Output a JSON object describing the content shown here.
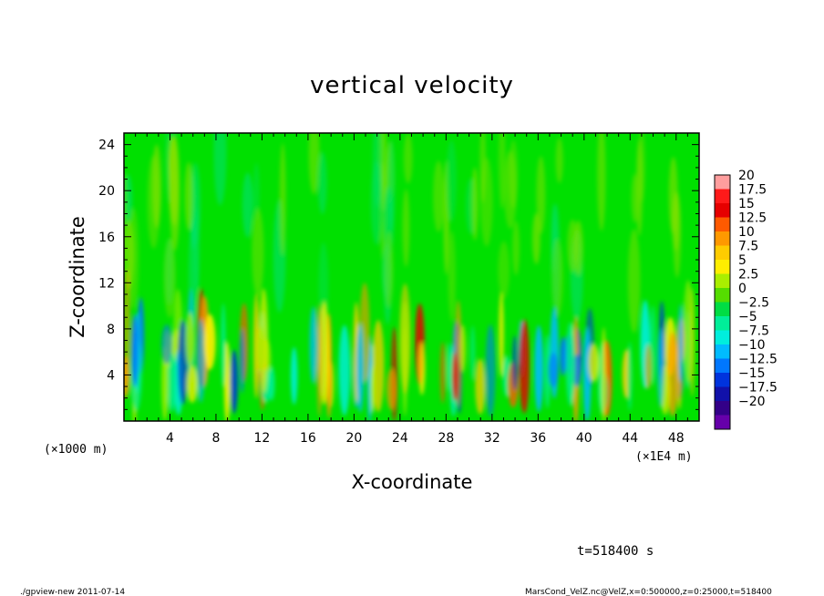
{
  "chart_data": {
    "type": "heatmap",
    "title": "vertical velocity",
    "xlabel": "X-coordinate",
    "ylabel": "Z-coordinate",
    "x_unit_left": "(×1000 m)",
    "x_unit_right": "(×1E4 m)",
    "xlim": [
      0,
      50
    ],
    "ylim": [
      0,
      25
    ],
    "x_ticks": [
      "4",
      "8",
      "12",
      "16",
      "20",
      "24",
      "28",
      "32",
      "36",
      "40",
      "44",
      "48"
    ],
    "x_tick_values": [
      4,
      8,
      12,
      16,
      20,
      24,
      28,
      32,
      36,
      40,
      44,
      48
    ],
    "y_ticks": [
      "4",
      "8",
      "12",
      "16",
      "20",
      "24"
    ],
    "y_tick_values": [
      4,
      8,
      12,
      16,
      20,
      24
    ],
    "colorbar": {
      "labels": [
        "20",
        "17.5",
        "15",
        "12.5",
        "10",
        "7.5",
        "5",
        "2.5",
        "0",
        "−2.5",
        "−5",
        "−7.5",
        "−10",
        "−12.5",
        "−15",
        "−17.5",
        "−20"
      ],
      "colors": [
        "#ff9e9e",
        "#ff1a1a",
        "#e60000",
        "#ff5a00",
        "#ff9900",
        "#ffcc00",
        "#ffee00",
        "#aaee00",
        "#55dd00",
        "#00dd44",
        "#00ee99",
        "#00eedd",
        "#00bbff",
        "#0077ff",
        "#0033dd",
        "#1111aa",
        "#330088",
        "#6600aa"
      ]
    },
    "annotation": "t=518400 s"
  },
  "footer": {
    "left": "./gpview-new   2011-07-14",
    "right": "MarsCond_VelZ.nc@VelZ,x=0:500000,z=0:25000,t=518400"
  },
  "colors": {
    "field_background": "#00e000",
    "axis": "#000000"
  }
}
